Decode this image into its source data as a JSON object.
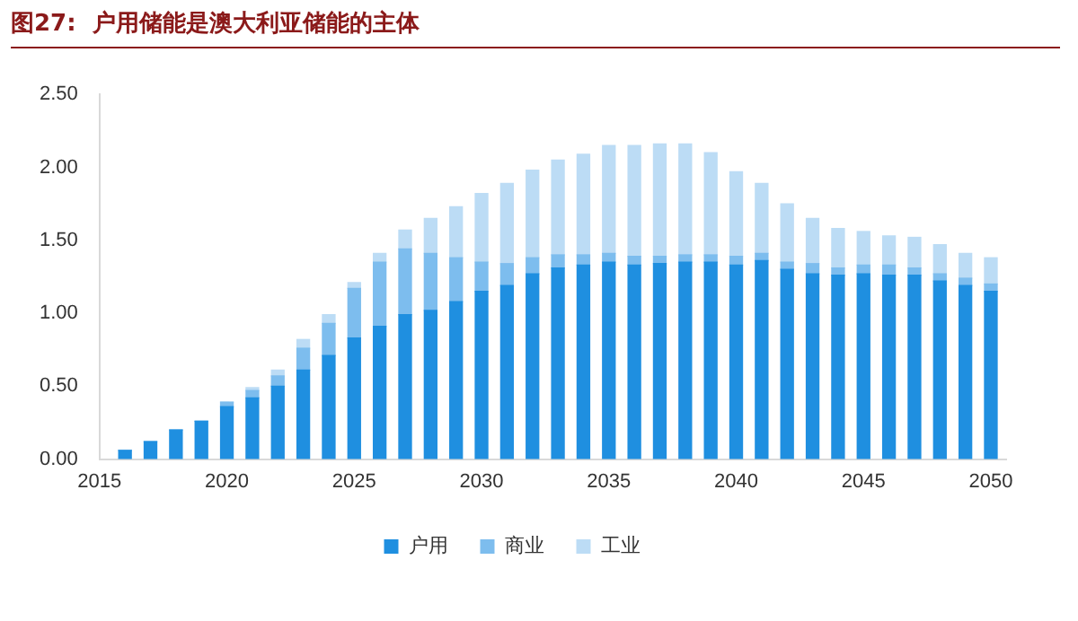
{
  "chart_data": {
    "type": "bar",
    "title": "图27:  户用储能是澳大利亚储能的主体",
    "stacked": true,
    "x": [
      2016,
      2017,
      2018,
      2019,
      2020,
      2021,
      2022,
      2023,
      2024,
      2025,
      2026,
      2027,
      2028,
      2029,
      2030,
      2031,
      2032,
      2033,
      2034,
      2035,
      2036,
      2037,
      2038,
      2039,
      2040,
      2041,
      2042,
      2043,
      2044,
      2045,
      2046,
      2047,
      2048,
      2049,
      2050
    ],
    "xlim": [
      2015,
      2050.6
    ],
    "xticks": [
      2015,
      2020,
      2025,
      2030,
      2035,
      2040,
      2045,
      2050
    ],
    "ylim": [
      0,
      2.5
    ],
    "yticks": [
      {
        "value": 0,
        "label": "0.00"
      },
      {
        "value": 0.5,
        "label": "0.50"
      },
      {
        "value": 1,
        "label": "1.00"
      },
      {
        "value": 1.5,
        "label": "1.50"
      },
      {
        "value": 2,
        "label": "2.00"
      },
      {
        "value": 2.5,
        "label": "2.50"
      }
    ],
    "series": [
      {
        "name": "户用",
        "color": "#1f8fe0",
        "values": [
          0.06,
          0.12,
          0.2,
          0.26,
          0.36,
          0.42,
          0.5,
          0.61,
          0.71,
          0.83,
          0.91,
          0.99,
          1.02,
          1.08,
          1.15,
          1.19,
          1.27,
          1.31,
          1.33,
          1.35,
          1.33,
          1.34,
          1.35,
          1.35,
          1.33,
          1.36,
          1.3,
          1.27,
          1.26,
          1.27,
          1.26,
          1.26,
          1.22,
          1.19,
          1.15
        ]
      },
      {
        "name": "商业",
        "color": "#7dbdee",
        "values": [
          0,
          0,
          0,
          0,
          0.03,
          0.05,
          0.07,
          0.15,
          0.22,
          0.34,
          0.44,
          0.45,
          0.39,
          0.3,
          0.2,
          0.15,
          0.11,
          0.09,
          0.07,
          0.06,
          0.06,
          0.05,
          0.05,
          0.05,
          0.06,
          0.05,
          0.05,
          0.07,
          0.05,
          0.06,
          0.07,
          0.05,
          0.05,
          0.05,
          0.05
        ]
      },
      {
        "name": "工业",
        "color": "#bcdcf5",
        "values": [
          0,
          0,
          0,
          0,
          0,
          0.02,
          0.04,
          0.06,
          0.06,
          0.04,
          0.06,
          0.13,
          0.24,
          0.35,
          0.47,
          0.55,
          0.6,
          0.65,
          0.69,
          0.74,
          0.76,
          0.77,
          0.76,
          0.7,
          0.58,
          0.48,
          0.4,
          0.31,
          0.27,
          0.23,
          0.2,
          0.21,
          0.2,
          0.17,
          0.18
        ]
      }
    ],
    "grid": false,
    "legend": "bottom"
  }
}
